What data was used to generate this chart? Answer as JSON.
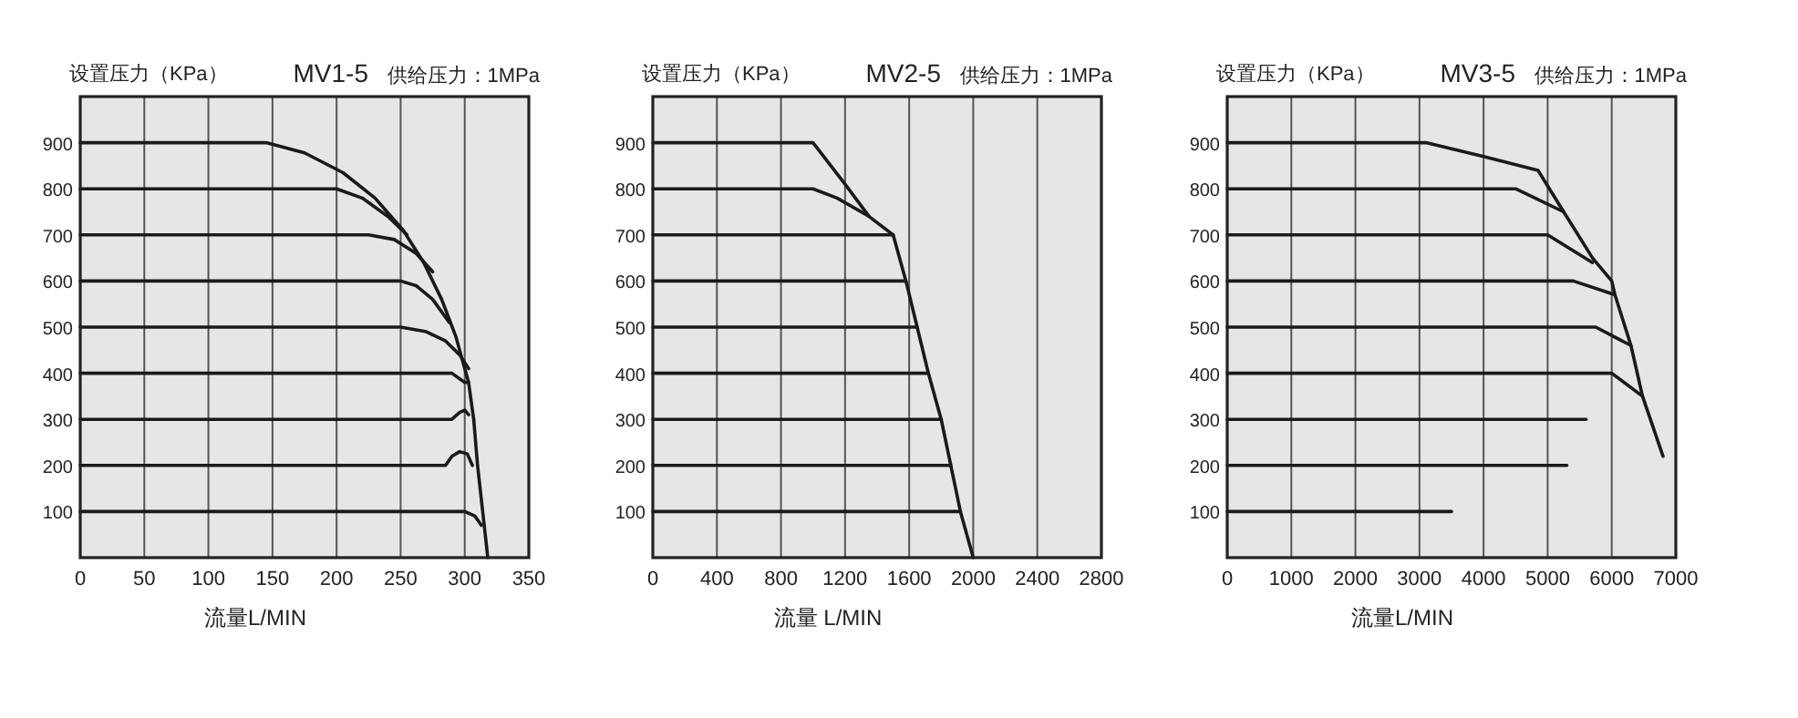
{
  "chart_data": [
    {
      "type": "line",
      "title": "MV1-5",
      "subtitle": "供给压力：1MPa",
      "ylabel": "设置压力（KPa）",
      "xlabel": "流量L/MIN",
      "xlim": [
        0,
        350
      ],
      "xticks": [
        0,
        50,
        100,
        150,
        200,
        250,
        300,
        350
      ],
      "ylim": [
        0,
        1000
      ],
      "yticks": [
        100,
        200,
        300,
        400,
        500,
        600,
        700,
        800,
        900
      ],
      "grid": "x",
      "marker": "none",
      "line_style": "solid",
      "series": [
        {
          "color": "#1a1a1a",
          "x": [
            0,
            145,
            175,
            205,
            230,
            252,
            268,
            282,
            293,
            300,
            303,
            307,
            310,
            314,
            318
          ],
          "values": [
            900,
            900,
            878,
            835,
            780,
            710,
            640,
            560,
            480,
            410,
            380,
            300,
            200,
            100,
            0
          ]
        },
        {
          "color": "#1a1a1a",
          "x": [
            0,
            200,
            220,
            240,
            255
          ],
          "values": [
            800,
            800,
            780,
            740,
            700
          ]
        },
        {
          "color": "#1a1a1a",
          "x": [
            0,
            225,
            245,
            262,
            275
          ],
          "values": [
            700,
            700,
            690,
            660,
            620
          ]
        },
        {
          "color": "#1a1a1a",
          "x": [
            0,
            250,
            262,
            275,
            288
          ],
          "values": [
            600,
            600,
            590,
            560,
            510
          ]
        },
        {
          "color": "#1a1a1a",
          "x": [
            0,
            250,
            270,
            285,
            296,
            303
          ],
          "values": [
            500,
            500,
            490,
            470,
            440,
            410
          ]
        },
        {
          "color": "#1a1a1a",
          "x": [
            0,
            290,
            300,
            303
          ],
          "values": [
            400,
            400,
            380,
            380
          ]
        },
        {
          "color": "#1a1a1a",
          "x": [
            0,
            290,
            296,
            300,
            303
          ],
          "values": [
            300,
            300,
            315,
            320,
            310
          ]
        },
        {
          "color": "#1a1a1a",
          "x": [
            0,
            285,
            290,
            296,
            302,
            306
          ],
          "values": [
            200,
            200,
            220,
            230,
            225,
            200
          ]
        },
        {
          "color": "#1a1a1a",
          "x": [
            0,
            290,
            300,
            308,
            313
          ],
          "values": [
            100,
            100,
            100,
            90,
            70
          ]
        }
      ]
    },
    {
      "type": "line",
      "title": "MV2-5",
      "subtitle": "供给压力：1MPa",
      "ylabel": "设置压力（KPa）",
      "xlabel": "流量 L/MIN",
      "xlim": [
        0,
        2800
      ],
      "xticks": [
        0,
        400,
        800,
        1200,
        1600,
        2000,
        2400,
        2800
      ],
      "ylim": [
        0,
        1000
      ],
      "yticks": [
        100,
        200,
        300,
        400,
        500,
        600,
        700,
        800,
        900
      ],
      "grid": "x",
      "marker": "none",
      "line_style": "solid",
      "series": [
        {
          "color": "#1a1a1a",
          "x": [
            0,
            1000,
            1200,
            1350,
            1500,
            1580,
            1650,
            1720,
            1800,
            1860,
            1920,
            2000
          ],
          "values": [
            900,
            900,
            810,
            740,
            700,
            600,
            500,
            400,
            300,
            200,
            100,
            0
          ]
        },
        {
          "color": "#1a1a1a",
          "x": [
            0,
            1000,
            1150,
            1350
          ],
          "values": [
            800,
            800,
            780,
            740
          ]
        },
        {
          "color": "#1a1a1a",
          "x": [
            0,
            1500
          ],
          "values": [
            700,
            700
          ]
        },
        {
          "color": "#1a1a1a",
          "x": [
            0,
            1580
          ],
          "values": [
            600,
            600
          ]
        },
        {
          "color": "#1a1a1a",
          "x": [
            0,
            1650
          ],
          "values": [
            500,
            500
          ]
        },
        {
          "color": "#1a1a1a",
          "x": [
            0,
            1720
          ],
          "values": [
            400,
            400
          ]
        },
        {
          "color": "#1a1a1a",
          "x": [
            0,
            1800
          ],
          "values": [
            300,
            300
          ]
        },
        {
          "color": "#1a1a1a",
          "x": [
            0,
            1860
          ],
          "values": [
            200,
            200
          ]
        },
        {
          "color": "#1a1a1a",
          "x": [
            0,
            1920
          ],
          "values": [
            100,
            100
          ]
        }
      ]
    },
    {
      "type": "line",
      "title": "MV3-5",
      "subtitle": "供给压力：1MPa",
      "ylabel": "设置压力（KPa）",
      "xlabel": "流量L/MIN",
      "xlim": [
        0,
        7000
      ],
      "xticks": [
        0,
        1000,
        2000,
        3000,
        4000,
        5000,
        6000,
        7000
      ],
      "ylim": [
        0,
        1000
      ],
      "yticks": [
        100,
        200,
        300,
        400,
        500,
        600,
        700,
        800,
        900
      ],
      "grid": "x",
      "marker": "none",
      "line_style": "solid",
      "series": [
        {
          "color": "#1a1a1a",
          "x": [
            0,
            3100,
            4000,
            4850,
            5250,
            5700,
            6000,
            6050,
            6300,
            6480,
            6800
          ],
          "values": [
            900,
            900,
            870,
            840,
            750,
            650,
            600,
            570,
            460,
            350,
            220
          ]
        },
        {
          "color": "#1a1a1a",
          "x": [
            0,
            4500,
            5250
          ],
          "values": [
            800,
            800,
            750
          ]
        },
        {
          "color": "#1a1a1a",
          "x": [
            0,
            5000,
            5700
          ],
          "values": [
            700,
            700,
            640
          ]
        },
        {
          "color": "#1a1a1a",
          "x": [
            0,
            5400,
            6050
          ],
          "values": [
            600,
            600,
            570
          ]
        },
        {
          "color": "#1a1a1a",
          "x": [
            0,
            5750,
            6300
          ],
          "values": [
            500,
            500,
            460
          ]
        },
        {
          "color": "#1a1a1a",
          "x": [
            0,
            6000,
            6480
          ],
          "values": [
            400,
            400,
            350
          ]
        },
        {
          "color": "#1a1a1a",
          "x": [
            0,
            5600
          ],
          "values": [
            300,
            300
          ]
        },
        {
          "color": "#1a1a1a",
          "x": [
            0,
            5300
          ],
          "values": [
            200,
            200
          ]
        },
        {
          "color": "#1a1a1a",
          "x": [
            0,
            3500
          ],
          "values": [
            100,
            100
          ]
        }
      ]
    }
  ]
}
